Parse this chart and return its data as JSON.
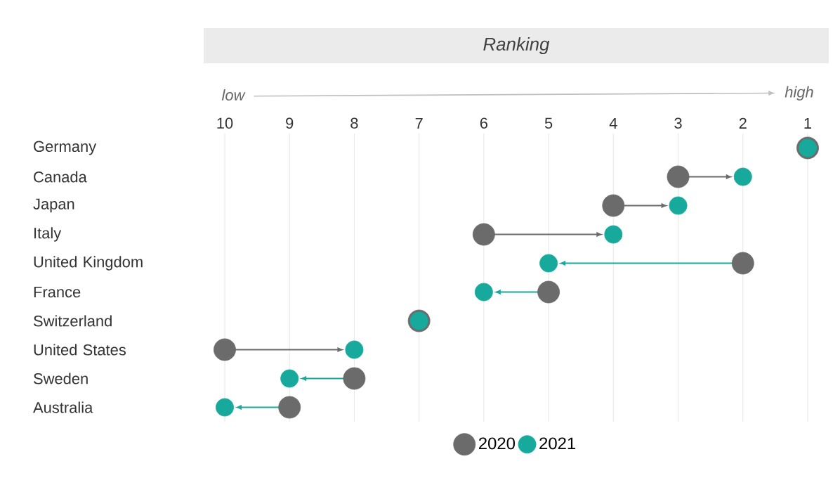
{
  "chart_data": {
    "type": "scatter",
    "orientation": "horizontal",
    "title": "Ranking",
    "categories": [
      "Germany",
      "Canada",
      "Japan",
      "Italy",
      "United Kingdom",
      "France",
      "Switzerland",
      "United States",
      "Sweden",
      "Australia"
    ],
    "series": [
      {
        "name": "2020",
        "color": "#6b6b6b",
        "values": [
          1,
          3,
          4,
          6,
          2,
          5,
          7,
          10,
          8,
          9
        ]
      },
      {
        "name": "2021",
        "color": "#17a99c",
        "values": [
          1,
          2,
          3,
          4,
          5,
          6,
          7,
          8,
          9,
          10
        ]
      }
    ],
    "xlim": [
      10,
      1
    ],
    "xticks": [
      10,
      9,
      8,
      7,
      6,
      5,
      4,
      3,
      2,
      1
    ],
    "annotations": [
      "low",
      "high"
    ],
    "grid": "x",
    "legend": "bottom"
  }
}
